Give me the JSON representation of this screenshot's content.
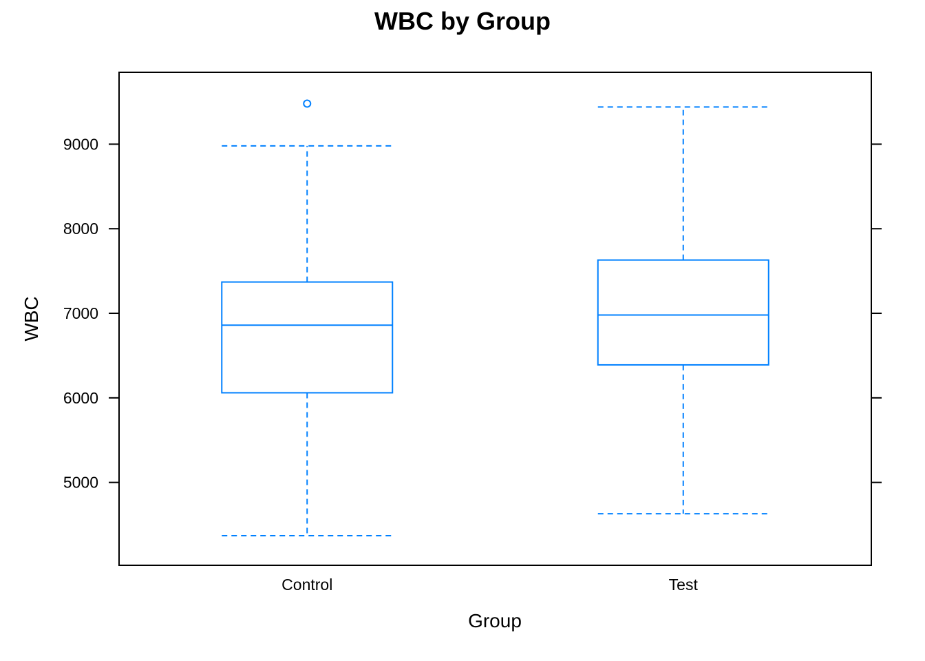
{
  "chart_data": {
    "type": "boxplot",
    "title": "WBC by Group",
    "xlabel": "Group",
    "ylabel": "WBC",
    "ylim": [
      4020,
      9850
    ],
    "yticks": [
      5000,
      6000,
      7000,
      8000,
      9000
    ],
    "categories": [
      "Control",
      "Test"
    ],
    "boxes": [
      {
        "category": "Control",
        "whisker_low": 4370,
        "q1": 6060,
        "median": 6860,
        "q3": 7370,
        "whisker_high": 8980,
        "outliers": [
          9480
        ]
      },
      {
        "category": "Test",
        "whisker_low": 4630,
        "q1": 6390,
        "median": 6980,
        "q3": 7630,
        "whisker_high": 9440,
        "outliers": []
      }
    ],
    "grid": false,
    "legend": "none",
    "colors": {
      "box": "#0080ff",
      "axis": "#000000"
    }
  }
}
